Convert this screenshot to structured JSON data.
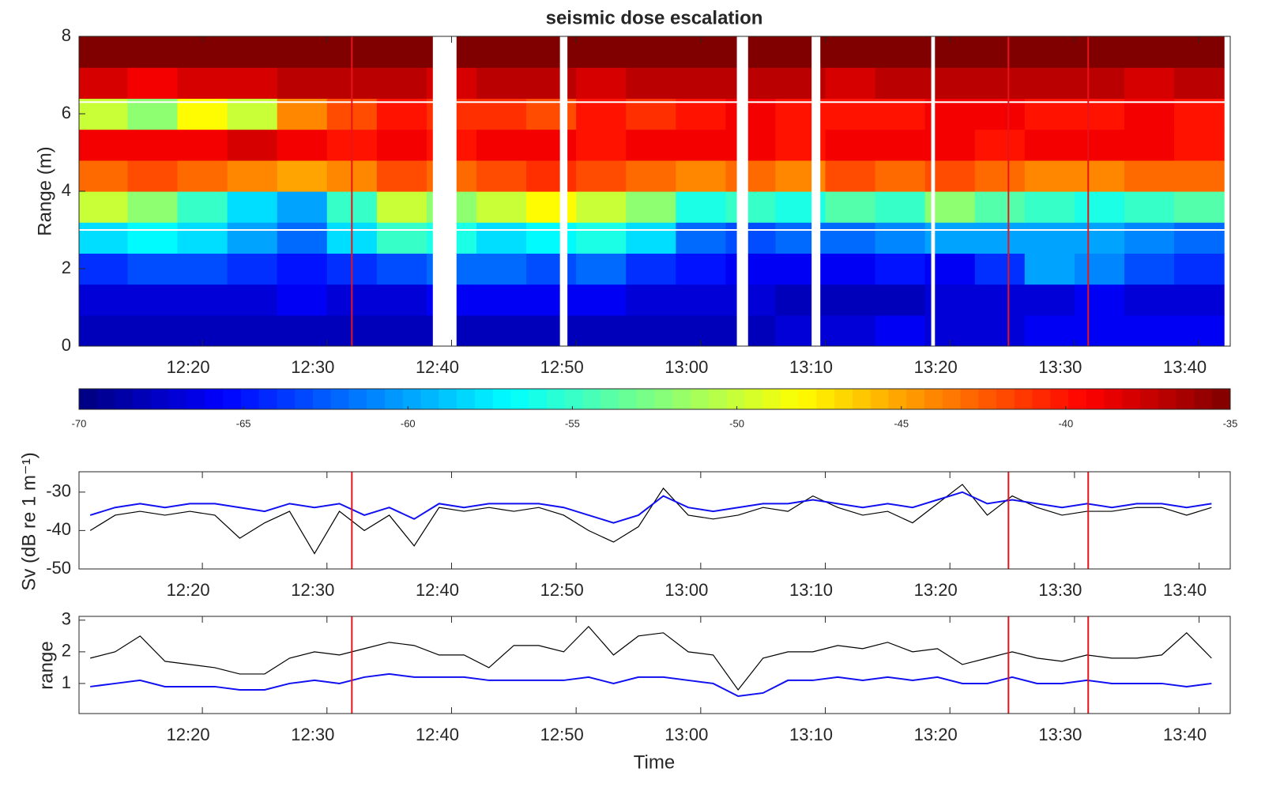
{
  "chart_data": [
    {
      "type": "heatmap",
      "title": "seismic dose escalation",
      "ylabel": "Range (m)",
      "xlim": [
        730.1,
        822.5
      ],
      "xticks": [
        {
          "value": 740,
          "label": "12:20"
        },
        {
          "value": 750,
          "label": "12:30"
        },
        {
          "value": 760,
          "label": "12:40"
        },
        {
          "value": 770,
          "label": "12:50"
        },
        {
          "value": 780,
          "label": "13:00"
        },
        {
          "value": 790,
          "label": "13:10"
        },
        {
          "value": 800,
          "label": "13:20"
        },
        {
          "value": 810,
          "label": "13:30"
        },
        {
          "value": 820,
          "label": "13:40"
        }
      ],
      "ylim": [
        0,
        8
      ],
      "yticks": [
        0,
        2,
        4,
        6,
        8
      ],
      "x": [
        732,
        736,
        740,
        744,
        748,
        752,
        756,
        760,
        764,
        768,
        772,
        776,
        780,
        784,
        788,
        792,
        796,
        800,
        804,
        808,
        812,
        816,
        820
      ],
      "y": [
        0.4,
        1.2,
        2.0,
        2.8,
        3.6,
        4.4,
        5.2,
        6.0,
        6.8,
        7.6
      ],
      "z": [
        [
          -68,
          -68,
          -68,
          -68,
          -68,
          -68,
          -68,
          -68,
          -68,
          -68,
          -68,
          -68,
          -68,
          -68,
          -67,
          -67,
          -66,
          -67,
          -67,
          -66,
          -66,
          -66,
          -66
        ],
        [
          -67,
          -67,
          -67,
          -67,
          -66,
          -67,
          -67,
          -66,
          -66,
          -66,
          -66,
          -67,
          -67,
          -67,
          -68,
          -68,
          -68,
          -67,
          -67,
          -67,
          -66,
          -67,
          -67
        ],
        [
          -64,
          -63,
          -63,
          -64,
          -65,
          -64,
          -63,
          -62,
          -62,
          -63,
          -62,
          -64,
          -65,
          -66,
          -66,
          -66,
          -65,
          -66,
          -64,
          -60,
          -61,
          -63,
          -64
        ],
        [
          -58,
          -57,
          -58,
          -60,
          -62,
          -58,
          -55,
          -56,
          -58,
          -57,
          -56,
          -58,
          -62,
          -63,
          -62,
          -62,
          -61,
          -60,
          -60,
          -60,
          -60,
          -61,
          -62
        ],
        [
          -50,
          -52,
          -55,
          -58,
          -60,
          -55,
          -50,
          -52,
          -50,
          -48,
          -50,
          -52,
          -56,
          -55,
          -56,
          -54,
          -55,
          -52,
          -54,
          -55,
          -56,
          -55,
          -54
        ],
        [
          -43,
          -42,
          -43,
          -44,
          -45,
          -44,
          -42,
          -43,
          -42,
          -41,
          -42,
          -43,
          -44,
          -43,
          -44,
          -42,
          -43,
          -42,
          -43,
          -44,
          -44,
          -43,
          -43
        ],
        [
          -39,
          -39,
          -39,
          -38,
          -39,
          -40,
          -39,
          -40,
          -39,
          -39,
          -40,
          -39,
          -39,
          -39,
          -40,
          -39,
          -39,
          -39,
          -40,
          -39,
          -39,
          -39,
          -40
        ],
        [
          -50,
          -52,
          -48,
          -50,
          -44,
          -42,
          -40,
          -41,
          -41,
          -42,
          -40,
          -41,
          -40,
          -39,
          -40,
          -40,
          -40,
          -39,
          -39,
          -40,
          -40,
          -39,
          -40
        ],
        [
          -38,
          -39,
          -38,
          -38,
          -37,
          -37,
          -37,
          -38,
          -37,
          -37,
          -38,
          -37,
          -37,
          -37,
          -37,
          -38,
          -37,
          -37,
          -37,
          -37,
          -37,
          -38,
          -37
        ],
        [
          -35,
          -35,
          -35,
          -35,
          -35,
          -35,
          -35,
          -35,
          -35,
          -35,
          -35,
          -35,
          -35,
          -35,
          -35,
          -35,
          -35,
          -35,
          -35,
          -35,
          -35,
          -35,
          -35
        ]
      ],
      "gaps": [
        [
          758.5,
          760.4
        ],
        [
          768.7,
          769.3
        ],
        [
          782.9,
          783.8
        ],
        [
          788.9,
          789.6
        ],
        [
          798.5,
          798.8
        ]
      ],
      "h_lines": [
        3,
        6.3
      ],
      "h_line_color": "#ffffff",
      "event_lines": [
        752,
        804.7,
        811.1
      ],
      "event_color": "#e8141c",
      "colorbar": {
        "clim": [
          -70,
          -35
        ],
        "ticks": [
          -70,
          -65,
          -60,
          -55,
          -50,
          -45,
          -40,
          -35
        ]
      }
    },
    {
      "type": "line",
      "ylabel": "Sv (dB re 1 m⁻¹)",
      "xlim": [
        730.1,
        822.5
      ],
      "xticks": [
        {
          "value": 740,
          "label": "12:20"
        },
        {
          "value": 750,
          "label": "12:30"
        },
        {
          "value": 760,
          "label": "12:40"
        },
        {
          "value": 770,
          "label": "12:50"
        },
        {
          "value": 780,
          "label": "13:00"
        },
        {
          "value": 790,
          "label": "13:10"
        },
        {
          "value": 800,
          "label": "13:20"
        },
        {
          "value": 810,
          "label": "13:30"
        },
        {
          "value": 820,
          "label": "13:40"
        }
      ],
      "ylim": [
        -50,
        -24.7
      ],
      "yticks": [
        -50,
        -40,
        -30
      ],
      "x": [
        731,
        733,
        735,
        737,
        739,
        741,
        743,
        745,
        747,
        749,
        751,
        753,
        755,
        757,
        759,
        761,
        763,
        765,
        767,
        769,
        771,
        773,
        775,
        777,
        779,
        781,
        783,
        785,
        787,
        789,
        791,
        793,
        795,
        797,
        799,
        801,
        803,
        805,
        807,
        809,
        811,
        813,
        815,
        817,
        819,
        821
      ],
      "series": [
        {
          "color": "#000000",
          "values": [
            -40,
            -36,
            -35,
            -36,
            -35,
            -36,
            -42,
            -38,
            -35,
            -46,
            -35,
            -40,
            -36,
            -44,
            -34,
            -35,
            -34,
            -35,
            -34,
            -36,
            -40,
            -43,
            -39,
            -29,
            -36,
            -37,
            -36,
            -34,
            -35,
            -31,
            -34,
            -36,
            -35,
            -38,
            -33,
            -28,
            -36,
            -31,
            -34,
            -36,
            -35,
            -35,
            -34,
            -34,
            -36,
            -34
          ]
        },
        {
          "color": "#1010f0",
          "values": [
            -36,
            -34,
            -33,
            -34,
            -33,
            -33,
            -34,
            -35,
            -33,
            -34,
            -33,
            -36,
            -34,
            -37,
            -33,
            -34,
            -33,
            -33,
            -33,
            -34,
            -36,
            -38,
            -36,
            -31,
            -34,
            -35,
            -34,
            -33,
            -33,
            -32,
            -33,
            -34,
            -33,
            -34,
            -32,
            -30,
            -33,
            -32,
            -33,
            -34,
            -33,
            -34,
            -33,
            -33,
            -34,
            -33
          ]
        }
      ],
      "event_lines": [
        752,
        804.7,
        811.1
      ],
      "event_color": "#e8141c"
    },
    {
      "type": "line",
      "ylabel": "range",
      "xlabel": "Time",
      "xlim": [
        730.1,
        822.5
      ],
      "xticks": [
        {
          "value": 740,
          "label": "12:20"
        },
        {
          "value": 750,
          "label": "12:30"
        },
        {
          "value": 760,
          "label": "12:40"
        },
        {
          "value": 770,
          "label": "12:50"
        },
        {
          "value": 780,
          "label": "13:00"
        },
        {
          "value": 790,
          "label": "13:10"
        },
        {
          "value": 800,
          "label": "13:20"
        },
        {
          "value": 810,
          "label": "13:30"
        },
        {
          "value": 820,
          "label": "13:40"
        }
      ],
      "ylim": [
        0.05,
        3.12
      ],
      "yticks": [
        1,
        2,
        3
      ],
      "x": [
        731,
        733,
        735,
        737,
        739,
        741,
        743,
        745,
        747,
        749,
        751,
        753,
        755,
        757,
        759,
        761,
        763,
        765,
        767,
        769,
        771,
        773,
        775,
        777,
        779,
        781,
        783,
        785,
        787,
        789,
        791,
        793,
        795,
        797,
        799,
        801,
        803,
        805,
        807,
        809,
        811,
        813,
        815,
        817,
        819,
        821
      ],
      "series": [
        {
          "color": "#000000",
          "values": [
            1.8,
            2.0,
            2.5,
            1.7,
            1.6,
            1.5,
            1.3,
            1.3,
            1.8,
            2.0,
            1.9,
            2.1,
            2.3,
            2.2,
            1.9,
            1.9,
            1.5,
            2.2,
            2.2,
            2.0,
            2.8,
            1.9,
            2.5,
            2.6,
            2.0,
            1.9,
            0.8,
            1.8,
            2.0,
            2.0,
            2.2,
            2.1,
            2.3,
            2.0,
            2.1,
            1.6,
            1.8,
            2.0,
            1.8,
            1.7,
            1.9,
            1.8,
            1.8,
            1.9,
            2.6,
            1.8
          ]
        },
        {
          "color": "#1010f0",
          "values": [
            0.9,
            1.0,
            1.1,
            0.9,
            0.9,
            0.9,
            0.8,
            0.8,
            1.0,
            1.1,
            1.0,
            1.2,
            1.3,
            1.2,
            1.2,
            1.2,
            1.1,
            1.1,
            1.1,
            1.1,
            1.2,
            1.0,
            1.2,
            1.2,
            1.1,
            1.0,
            0.6,
            0.7,
            1.1,
            1.1,
            1.2,
            1.1,
            1.2,
            1.1,
            1.2,
            1.0,
            1.0,
            1.2,
            1.0,
            1.0,
            1.1,
            1.0,
            1.0,
            1.0,
            0.9,
            1.0
          ]
        }
      ],
      "event_lines": [
        752,
        804.7,
        811.1
      ],
      "event_color": "#e8141c"
    }
  ]
}
